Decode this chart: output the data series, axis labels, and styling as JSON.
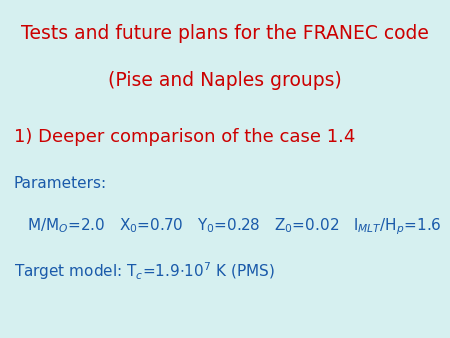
{
  "background_color": "#d6f0f0",
  "title_line1": "Tests and future plans for the FRANEC code",
  "title_line2": "(Pise and Naples groups)",
  "title_color": "#cc0000",
  "title_fontsize": 13.5,
  "section_color": "#cc0000",
  "section_text": "1) Deeper comparison of the case 1.4",
  "section_fontsize": 13,
  "params_label": "Parameters:",
  "params_fontsize": 11,
  "params_color": "#1a5aaa",
  "target_color": "#1a5aaa",
  "target_fontsize": 11,
  "body_fontsize": 11
}
